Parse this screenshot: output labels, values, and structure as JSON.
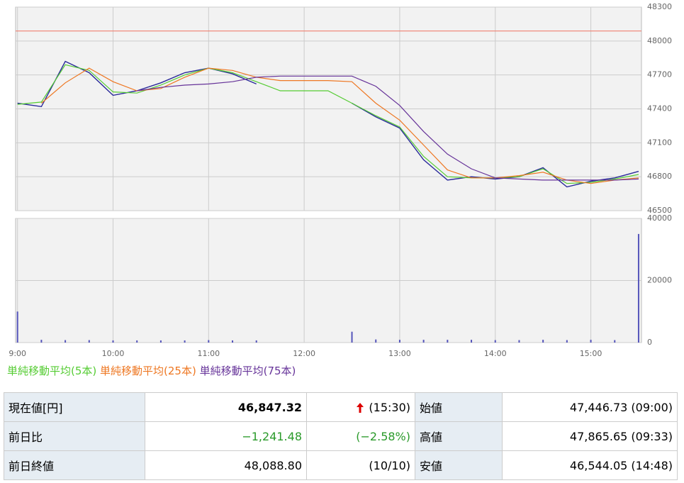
{
  "chart_data": [
    {
      "type": "line",
      "x": [
        9,
        9.25,
        9.5,
        9.75,
        10,
        10.25,
        10.5,
        10.75,
        11,
        11.25,
        11.5,
        11.75,
        12,
        12.25,
        12.5,
        12.75,
        13,
        13.25,
        13.5,
        13.75,
        14,
        14.25,
        14.5,
        14.75,
        15,
        15.25,
        15.5
      ],
      "xlim": [
        8.98,
        15.53
      ],
      "xticks": [
        {
          "value": 9,
          "label": "9:00"
        },
        {
          "value": 10,
          "label": "10:00"
        },
        {
          "value": 11,
          "label": "11:00"
        },
        {
          "value": 12,
          "label": "12:00"
        },
        {
          "value": 13,
          "label": "13:00"
        },
        {
          "value": 14,
          "label": "14:00"
        },
        {
          "value": 15,
          "label": "15:00"
        }
      ],
      "ylim": [
        46500,
        48300
      ],
      "yticks": [
        46500,
        46800,
        47100,
        47400,
        47700,
        48000,
        48300
      ],
      "grid": true,
      "reference_line": 48088.8,
      "reference_color": "#f08070",
      "series": [
        {
          "color": "#2a2a9a",
          "values": [
            47450,
            47420,
            47820,
            47720,
            47520,
            47560,
            47630,
            47720,
            47760,
            47710,
            47620,
            null,
            null,
            null,
            47450,
            47330,
            47230,
            46950,
            46770,
            46800,
            46780,
            46800,
            46880,
            46710,
            46760,
            46790,
            46847.32
          ]
        },
        {
          "name": "単純移動平均(5本)",
          "color": "#55cc33",
          "values": [
            47440,
            47460,
            47790,
            47740,
            47550,
            47540,
            47610,
            47700,
            47760,
            47720,
            47640,
            47560,
            47560,
            47560,
            47450,
            47340,
            47240,
            46980,
            46800,
            46790,
            46790,
            46800,
            46870,
            46740,
            46750,
            46780,
            46820
          ]
        },
        {
          "name": "単純移動平均(25本)",
          "color": "#ee7722",
          "values": [
            null,
            47450,
            47630,
            47760,
            47640,
            47560,
            47580,
            47680,
            47760,
            47740,
            47680,
            47650,
            47650,
            47650,
            47640,
            47450,
            47300,
            47080,
            46860,
            46790,
            46790,
            46810,
            46840,
            46770,
            46740,
            46770,
            46790
          ]
        },
        {
          "name": "単純移動平均(75本)",
          "color": "#663399",
          "values": [
            null,
            null,
            null,
            null,
            null,
            47560,
            47590,
            47610,
            47620,
            47640,
            47680,
            47690,
            47690,
            47690,
            47690,
            47600,
            47430,
            47200,
            47000,
            46870,
            46790,
            46780,
            46770,
            46770,
            46770,
            46770,
            46780
          ]
        }
      ]
    },
    {
      "type": "bar",
      "x": [
        9,
        9.25,
        9.5,
        9.75,
        10,
        10.25,
        10.5,
        10.75,
        11,
        11.25,
        11.5,
        11.75,
        12,
        12.25,
        12.5,
        12.75,
        13,
        13.25,
        13.5,
        13.75,
        14,
        14.25,
        14.5,
        14.75,
        15,
        15.25,
        15.5
      ],
      "xlim": [
        8.98,
        15.53
      ],
      "ylim": [
        0,
        40000
      ],
      "yticks": [
        0,
        20000,
        40000
      ],
      "grid": true,
      "color": "#5555bb",
      "values": [
        10000,
        900,
        800,
        800,
        700,
        700,
        700,
        700,
        800,
        700,
        700,
        null,
        null,
        null,
        3500,
        1000,
        900,
        900,
        900,
        900,
        800,
        800,
        900,
        800,
        900,
        800,
        35000
      ]
    }
  ],
  "table": {
    "rows": [
      [
        "現在値[円]",
        "46,847.32",
        "(15:30)",
        "始値",
        "47,446.73 (09:00)"
      ],
      [
        "前日比",
        "−1,241.48",
        "(−2.58%)",
        "高値",
        "47,865.65 (09:33)"
      ],
      [
        "前日終値",
        "48,088.80",
        "(10/10)",
        "安値",
        "46,544.05 (14:48)"
      ]
    ]
  }
}
